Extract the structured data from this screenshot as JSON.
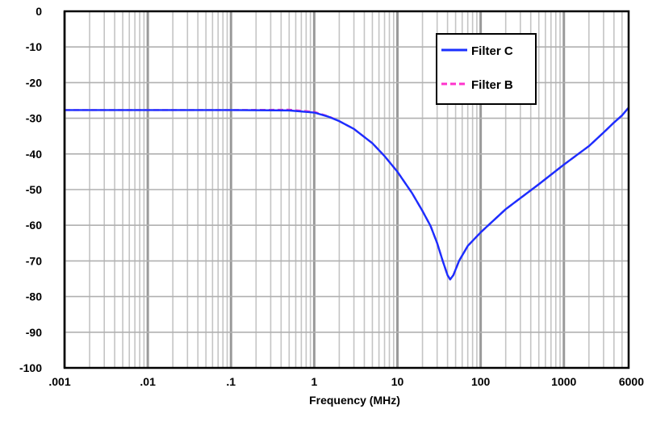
{
  "chart_data": {
    "type": "line",
    "title": "",
    "xlabel": "Frequency (MHz)",
    "ylabel": "",
    "x_scale": "log",
    "xlim": [
      0.001,
      6000
    ],
    "ylim": [
      -100,
      0
    ],
    "grid": true,
    "legend_position": "top-right",
    "x_ticks": [
      {
        "value": 0.001,
        "label": ".001"
      },
      {
        "value": 0.01,
        "label": ".01"
      },
      {
        "value": 0.1,
        "label": ".1"
      },
      {
        "value": 1,
        "label": "1"
      },
      {
        "value": 10,
        "label": "10"
      },
      {
        "value": 100,
        "label": "100"
      },
      {
        "value": 1000,
        "label": "1000"
      },
      {
        "value": 6000,
        "label": "6000"
      }
    ],
    "y_ticks": [
      {
        "value": 0,
        "label": "0"
      },
      {
        "value": -10,
        "label": "-10"
      },
      {
        "value": -20,
        "label": "-20"
      },
      {
        "value": -30,
        "label": "-30"
      },
      {
        "value": -40,
        "label": "-40"
      },
      {
        "value": -50,
        "label": "-50"
      },
      {
        "value": -60,
        "label": "-60"
      },
      {
        "value": -70,
        "label": "-70"
      },
      {
        "value": -80,
        "label": "-80"
      },
      {
        "value": -90,
        "label": "-90"
      },
      {
        "value": -100,
        "label": "-100"
      }
    ],
    "series": [
      {
        "name": "Filter C",
        "color": "#1a2fff",
        "style": "solid",
        "points": [
          [
            0.001,
            -27.7
          ],
          [
            0.01,
            -27.7
          ],
          [
            0.1,
            -27.7
          ],
          [
            0.5,
            -27.8
          ],
          [
            1,
            -28.4
          ],
          [
            1.5,
            -29.6
          ],
          [
            2,
            -30.8
          ],
          [
            3,
            -33.0
          ],
          [
            5,
            -37.0
          ],
          [
            7,
            -40.6
          ],
          [
            10,
            -45.0
          ],
          [
            15,
            -51.0
          ],
          [
            20,
            -56.0
          ],
          [
            25,
            -60.2
          ],
          [
            30,
            -65.0
          ],
          [
            35,
            -70.0
          ],
          [
            40,
            -74.0
          ],
          [
            43,
            -75.2
          ],
          [
            47,
            -74.0
          ],
          [
            55,
            -70.0
          ],
          [
            70,
            -65.8
          ],
          [
            100,
            -62.0
          ],
          [
            200,
            -55.5
          ],
          [
            500,
            -48.5
          ],
          [
            1000,
            -43.0
          ],
          [
            2000,
            -37.8
          ],
          [
            3000,
            -34.0
          ],
          [
            4000,
            -31.2
          ],
          [
            5000,
            -29.2
          ],
          [
            6000,
            -27.0
          ]
        ]
      },
      {
        "name": "Filter B",
        "color": "#ff33cc",
        "style": "dashed",
        "points": [
          [
            0.001,
            -27.7
          ],
          [
            0.01,
            -27.7
          ],
          [
            0.1,
            -27.7
          ],
          [
            0.5,
            -27.6
          ],
          [
            1,
            -28.2
          ],
          [
            1.5,
            -29.5
          ],
          [
            2,
            -30.8
          ],
          [
            3,
            -33.0
          ],
          [
            5,
            -37.0
          ],
          [
            7,
            -40.6
          ],
          [
            10,
            -45.0
          ],
          [
            15,
            -51.0
          ],
          [
            20,
            -56.0
          ],
          [
            25,
            -60.2
          ],
          [
            30,
            -65.0
          ],
          [
            35,
            -70.0
          ],
          [
            40,
            -74.0
          ],
          [
            43,
            -75.2
          ],
          [
            47,
            -74.0
          ],
          [
            55,
            -70.0
          ],
          [
            70,
            -65.8
          ],
          [
            100,
            -62.0
          ],
          [
            200,
            -55.5
          ],
          [
            500,
            -48.5
          ],
          [
            1000,
            -43.0
          ],
          [
            2000,
            -37.8
          ],
          [
            3000,
            -34.0
          ],
          [
            4000,
            -31.2
          ],
          [
            5000,
            -29.2
          ],
          [
            6000,
            -27.0
          ]
        ]
      }
    ]
  }
}
